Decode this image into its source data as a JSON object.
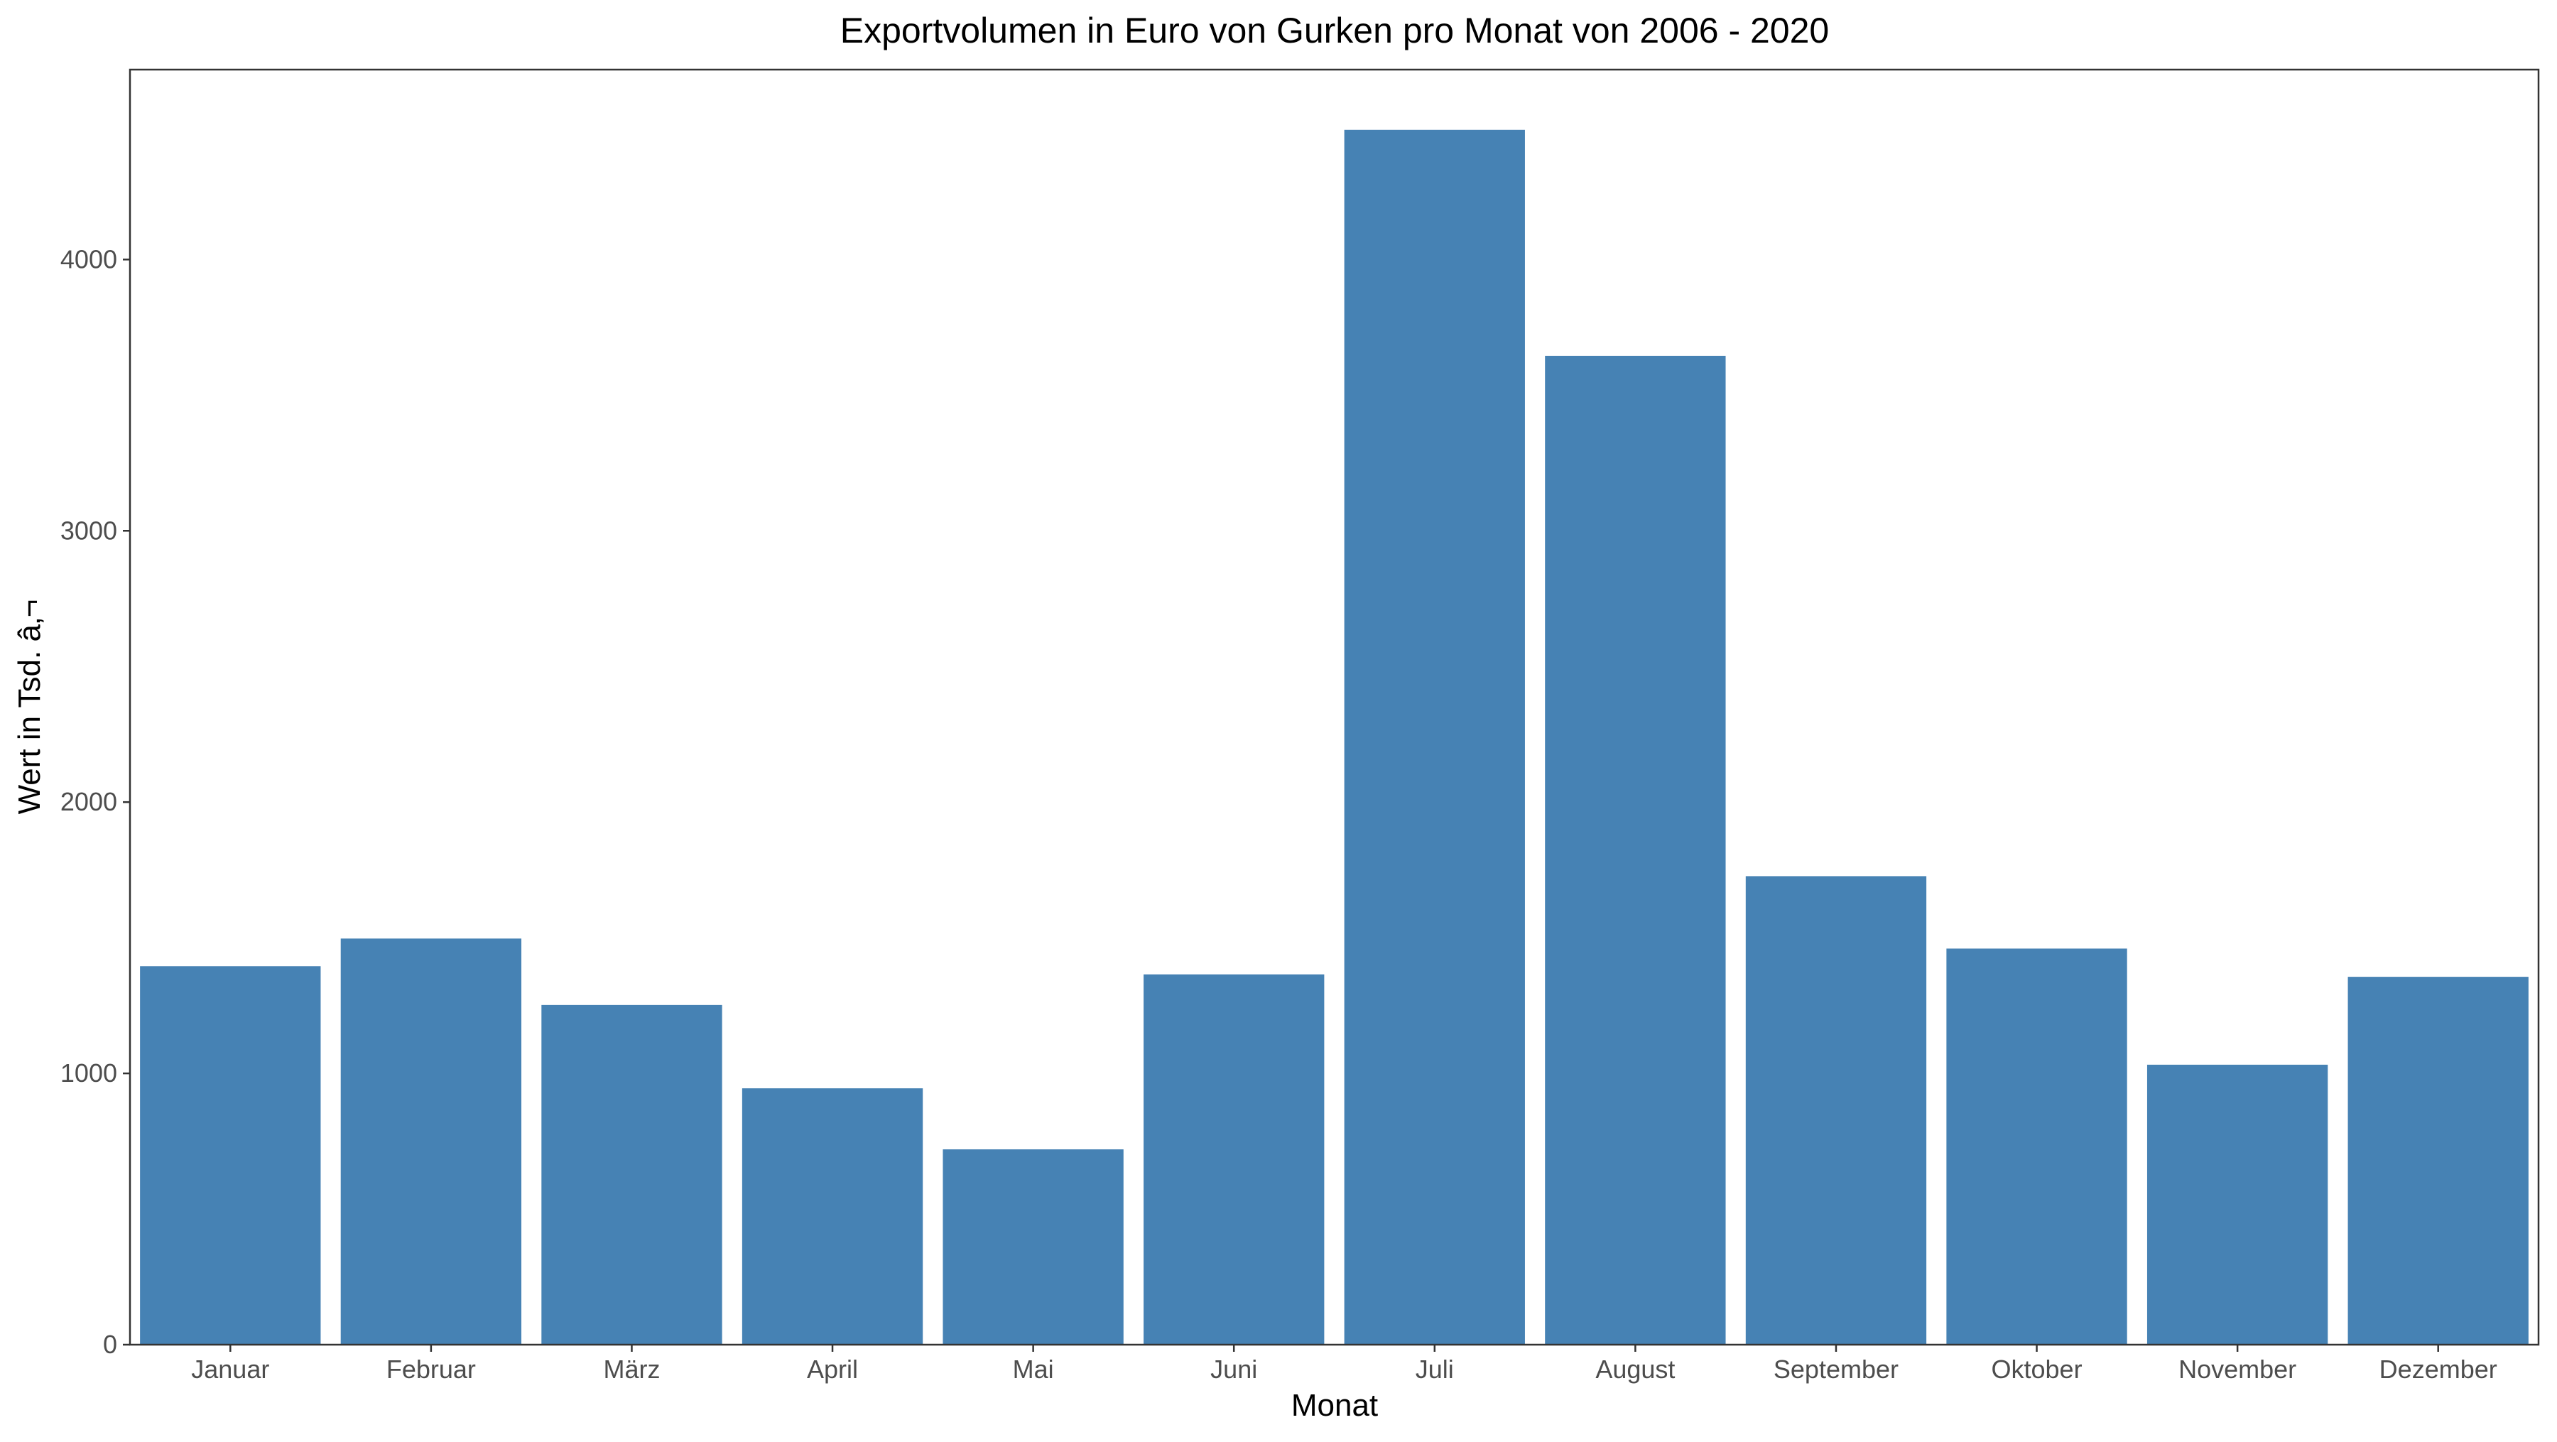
{
  "chart_data": {
    "type": "bar",
    "title": "Exportvolumen in Euro von Gurken pro Monat von 2006 - 2020",
    "xlabel": "Monat",
    "ylabel": "Wert in Tsd. â‚¬",
    "categories": [
      "Januar",
      "Februar",
      "März",
      "April",
      "Mai",
      "Juni",
      "Juli",
      "August",
      "September",
      "Oktober",
      "November",
      "Dezember"
    ],
    "values": [
      1395,
      1497,
      1252,
      945,
      720,
      1365,
      4478,
      3645,
      1727,
      1460,
      1032,
      1356
    ],
    "ylim": [
      0,
      4700
    ],
    "yticks": [
      0,
      1000,
      2000,
      3000,
      4000
    ],
    "grid": false,
    "legend": "none",
    "bar_color": "#4682B4"
  }
}
